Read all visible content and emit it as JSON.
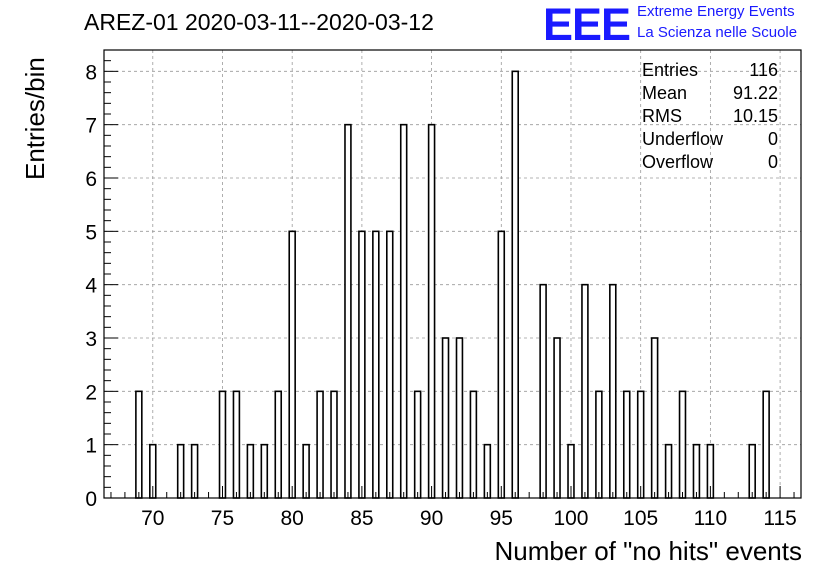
{
  "header": {
    "title": "AREZ-01 2020-03-11--2020-03-12",
    "logo_text": "EEE",
    "logo_line1": "Extreme Energy Events",
    "logo_line2": "La Scienza nelle Scuole"
  },
  "stats_box": {
    "rows": [
      {
        "label": "Entries",
        "value": "116"
      },
      {
        "label": "Mean",
        "value": "91.22"
      },
      {
        "label": "RMS",
        "value": "10.15"
      },
      {
        "label": "Underflow",
        "value": "0"
      },
      {
        "label": "Overflow",
        "value": "0"
      }
    ]
  },
  "chart_data": {
    "type": "bar",
    "title": "AREZ-01 2020-03-11--2020-03-12",
    "xlabel": "Number of \"no hits\" events",
    "ylabel": "Entries/bin",
    "xlim": [
      66.5,
      116.5
    ],
    "ylim": [
      0,
      8.4
    ],
    "bin_width": 1,
    "grid": true,
    "x_ticks": [
      70,
      75,
      80,
      85,
      90,
      95,
      100,
      105,
      110,
      115
    ],
    "y_ticks": [
      0,
      1,
      2,
      3,
      4,
      5,
      6,
      7,
      8
    ],
    "bins": [
      69,
      70,
      71,
      72,
      73,
      74,
      75,
      76,
      77,
      78,
      79,
      80,
      81,
      82,
      83,
      84,
      85,
      86,
      87,
      88,
      89,
      90,
      91,
      92,
      93,
      94,
      95,
      96,
      97,
      98,
      99,
      100,
      101,
      102,
      103,
      104,
      105,
      106,
      107,
      108,
      109,
      110,
      111,
      112,
      113,
      114
    ],
    "values": [
      2,
      1,
      0,
      1,
      1,
      0,
      2,
      2,
      1,
      1,
      2,
      5,
      1,
      2,
      2,
      7,
      5,
      5,
      5,
      7,
      2,
      7,
      3,
      3,
      2,
      1,
      5,
      8,
      0,
      4,
      3,
      1,
      4,
      2,
      4,
      2,
      2,
      3,
      1,
      2,
      1,
      1,
      0,
      0,
      1,
      2
    ]
  }
}
